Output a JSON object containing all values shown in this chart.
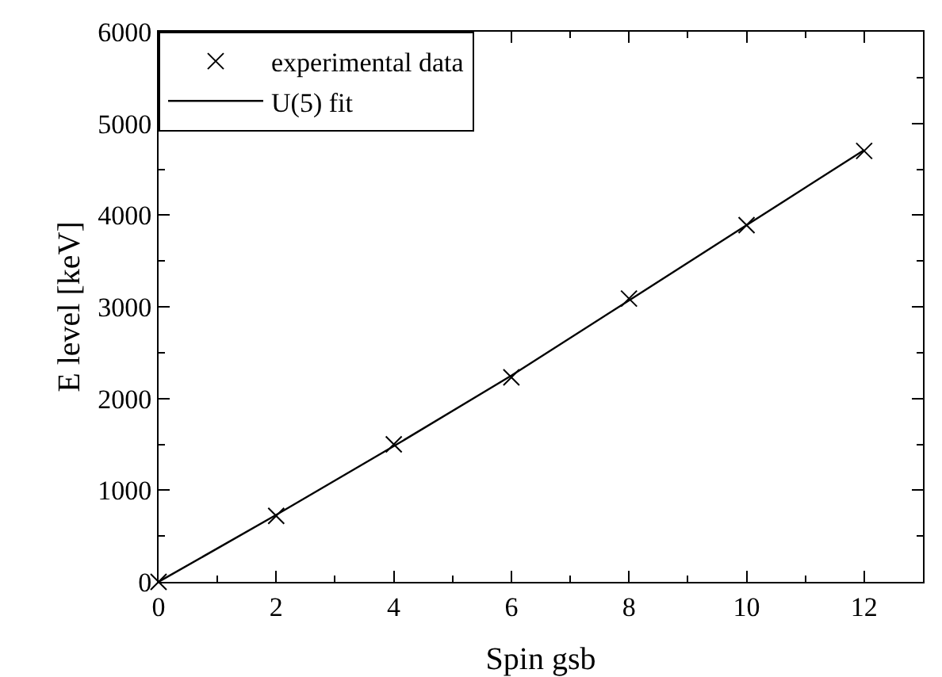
{
  "chart_data": {
    "type": "scatter",
    "xlabel": "Spin gsb",
    "ylabel": "E level [keV]",
    "xlim": [
      0,
      13
    ],
    "xticks": [
      0,
      2,
      4,
      6,
      8,
      10,
      12
    ],
    "ylim": [
      0,
      6000
    ],
    "yticks": [
      0,
      1000,
      2000,
      3000,
      4000,
      5000,
      6000
    ],
    "grid": false,
    "legend": "top left",
    "series": [
      {
        "name": "experimental data",
        "marker": "cross",
        "color": "#000000",
        "x": [
          0,
          2,
          4,
          6,
          8,
          10,
          12
        ],
        "values": [
          0,
          720,
          1500,
          2230,
          3090,
          3890,
          4700
        ]
      },
      {
        "name": "U(5) fit",
        "type": "line",
        "marker": "none",
        "line_style": "solid",
        "color": "#000000",
        "x": [
          0,
          2,
          4,
          6,
          8,
          10,
          12
        ],
        "values": [
          0,
          730,
          1480,
          2250,
          3070,
          3890,
          4710
        ]
      }
    ]
  }
}
